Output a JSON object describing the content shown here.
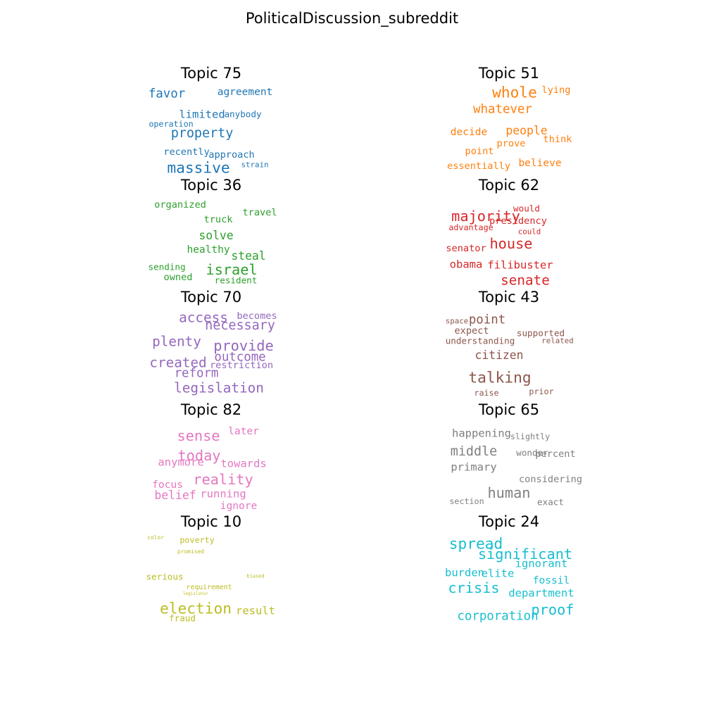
{
  "title": "PoliticalDiscussion_subreddit",
  "chart_data": {
    "type": "wordcloud",
    "title": "PoliticalDiscussion_subreddit",
    "topics": [
      {
        "label": "Topic 75",
        "color": "#1f77b4",
        "words": [
          {
            "text": "favor",
            "weight": 17
          },
          {
            "text": "agreement",
            "weight": 14
          },
          {
            "text": "limited",
            "weight": 15
          },
          {
            "text": "anybody",
            "weight": 12
          },
          {
            "text": "operation",
            "weight": 11
          },
          {
            "text": "property",
            "weight": 18
          },
          {
            "text": "recently",
            "weight": 13
          },
          {
            "text": "approach",
            "weight": 13
          },
          {
            "text": "massive",
            "weight": 21
          },
          {
            "text": "strain",
            "weight": 10
          }
        ]
      },
      {
        "label": "Topic 51",
        "color": "#ff7f0e",
        "words": [
          {
            "text": "whole",
            "weight": 21
          },
          {
            "text": "lying",
            "weight": 13
          },
          {
            "text": "whatever",
            "weight": 17
          },
          {
            "text": "decide",
            "weight": 14
          },
          {
            "text": "people",
            "weight": 16
          },
          {
            "text": "prove",
            "weight": 13
          },
          {
            "text": "think",
            "weight": 13
          },
          {
            "text": "point",
            "weight": 13
          },
          {
            "text": "essentially",
            "weight": 13
          },
          {
            "text": "believe",
            "weight": 14
          }
        ]
      },
      {
        "label": "Topic 36",
        "color": "#2ca02c",
        "words": [
          {
            "text": "organized",
            "weight": 13
          },
          {
            "text": "travel",
            "weight": 13
          },
          {
            "text": "truck",
            "weight": 13
          },
          {
            "text": "solve",
            "weight": 16
          },
          {
            "text": "healthy",
            "weight": 14
          },
          {
            "text": "steal",
            "weight": 16
          },
          {
            "text": "israel",
            "weight": 20
          },
          {
            "text": "sending",
            "weight": 12
          },
          {
            "text": "owned",
            "weight": 13
          },
          {
            "text": "resident",
            "weight": 12
          }
        ]
      },
      {
        "label": "Topic 62",
        "color": "#d62728",
        "words": [
          {
            "text": "majority",
            "weight": 20
          },
          {
            "text": "would",
            "weight": 12
          },
          {
            "text": "presidency",
            "weight": 13
          },
          {
            "text": "advantage",
            "weight": 11
          },
          {
            "text": "could",
            "weight": 10
          },
          {
            "text": "house",
            "weight": 20
          },
          {
            "text": "senator",
            "weight": 13
          },
          {
            "text": "obama",
            "weight": 15
          },
          {
            "text": "filibuster",
            "weight": 15
          },
          {
            "text": "senate",
            "weight": 19
          }
        ]
      },
      {
        "label": "Topic 70",
        "color": "#9467bd",
        "words": [
          {
            "text": "access",
            "weight": 19
          },
          {
            "text": "becomes",
            "weight": 13
          },
          {
            "text": "necessary",
            "weight": 18
          },
          {
            "text": "plenty",
            "weight": 19
          },
          {
            "text": "provide",
            "weight": 20
          },
          {
            "text": "outcome",
            "weight": 17
          },
          {
            "text": "created",
            "weight": 19
          },
          {
            "text": "restriction",
            "weight": 13
          },
          {
            "text": "reform",
            "weight": 17
          },
          {
            "text": "legislation",
            "weight": 19
          }
        ]
      },
      {
        "label": "Topic 43",
        "color": "#8c564b",
        "words": [
          {
            "text": "space",
            "weight": 10
          },
          {
            "text": "point",
            "weight": 17
          },
          {
            "text": "expect",
            "weight": 13
          },
          {
            "text": "supported",
            "weight": 12
          },
          {
            "text": "understanding",
            "weight": 12
          },
          {
            "text": "related",
            "weight": 10
          },
          {
            "text": "citizen",
            "weight": 16
          },
          {
            "text": "talking",
            "weight": 21
          },
          {
            "text": "raise",
            "weight": 11
          },
          {
            "text": "prior",
            "weight": 11
          }
        ]
      },
      {
        "label": "Topic 82",
        "color": "#e377c2",
        "words": [
          {
            "text": "sense",
            "weight": 20
          },
          {
            "text": "later",
            "weight": 14
          },
          {
            "text": "today",
            "weight": 20
          },
          {
            "text": "anymore",
            "weight": 15
          },
          {
            "text": "towards",
            "weight": 15
          },
          {
            "text": "reality",
            "weight": 20
          },
          {
            "text": "focus",
            "weight": 14
          },
          {
            "text": "belief",
            "weight": 16
          },
          {
            "text": "running",
            "weight": 15
          },
          {
            "text": "ignore",
            "weight": 14
          }
        ]
      },
      {
        "label": "Topic 65",
        "color": "#7f7f7f",
        "words": [
          {
            "text": "happening",
            "weight": 15
          },
          {
            "text": "slightly",
            "weight": 11
          },
          {
            "text": "middle",
            "weight": 18
          },
          {
            "text": "wonder",
            "weight": 12
          },
          {
            "text": "percent",
            "weight": 13
          },
          {
            "text": "primary",
            "weight": 15
          },
          {
            "text": "considering",
            "weight": 13
          },
          {
            "text": "human",
            "weight": 20
          },
          {
            "text": "section",
            "weight": 11
          },
          {
            "text": "exact",
            "weight": 12
          }
        ]
      },
      {
        "label": "Topic 10",
        "color": "#bcbd22",
        "words": [
          {
            "text": "color",
            "weight": 7
          },
          {
            "text": "poverty",
            "weight": 11
          },
          {
            "text": "promised",
            "weight": 7
          },
          {
            "text": "serious",
            "weight": 12
          },
          {
            "text": "biased",
            "weight": 6
          },
          {
            "text": "requirement",
            "weight": 9
          },
          {
            "text": "legislator",
            "weight": 5
          },
          {
            "text": "election",
            "weight": 21
          },
          {
            "text": "result",
            "weight": 15
          },
          {
            "text": "fraud",
            "weight": 12
          }
        ]
      },
      {
        "label": "Topic 24",
        "color": "#17becf",
        "words": [
          {
            "text": "spread",
            "weight": 21
          },
          {
            "text": "significant",
            "weight": 20
          },
          {
            "text": "ignorant",
            "weight": 15
          },
          {
            "text": "burden",
            "weight": 15
          },
          {
            "text": "elite",
            "weight": 15
          },
          {
            "text": "fossil",
            "weight": 14
          },
          {
            "text": "crisis",
            "weight": 20
          },
          {
            "text": "department",
            "weight": 15
          },
          {
            "text": "proof",
            "weight": 20
          },
          {
            "text": "corporation",
            "weight": 17
          }
        ]
      }
    ]
  }
}
